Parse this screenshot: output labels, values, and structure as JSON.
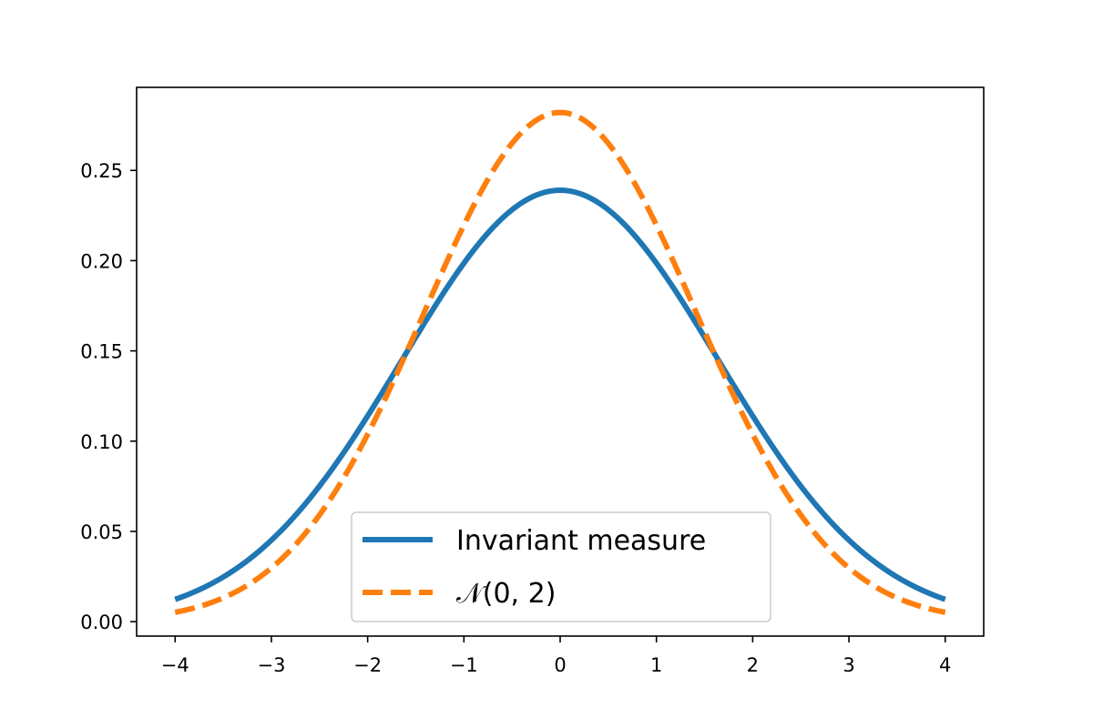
{
  "chart_data": {
    "type": "line",
    "title": "",
    "xlabel": "",
    "ylabel": "",
    "xlim": [
      -4.4,
      4.4
    ],
    "ylim": [
      -0.008,
      0.296
    ],
    "grid": false,
    "legend_position": "lower-center",
    "xticks": [
      -4,
      -3,
      -2,
      -1,
      0,
      1,
      2,
      3,
      4
    ],
    "xtick_labels": [
      "−4",
      "−3",
      "−2",
      "−1",
      "0",
      "1",
      "2",
      "3",
      "4"
    ],
    "yticks": [
      0.0,
      0.05,
      0.1,
      0.15,
      0.2,
      0.25
    ],
    "ytick_labels": [
      "0.00",
      "0.05",
      "0.10",
      "0.15",
      "0.20",
      "0.25"
    ],
    "series": [
      {
        "name": "Invariant measure",
        "color": "#1f77b4",
        "style": "solid",
        "x": [
          -4,
          -3.5,
          -3,
          -2.5,
          -2,
          -1.5,
          -1,
          -0.5,
          0,
          0.5,
          1,
          1.5,
          2,
          2.5,
          3,
          3.5,
          4
        ],
        "y": [
          0.013,
          0.026,
          0.047,
          0.078,
          0.116,
          0.158,
          0.199,
          0.229,
          0.239,
          0.229,
          0.199,
          0.158,
          0.116,
          0.078,
          0.047,
          0.026,
          0.013
        ]
      },
      {
        "name": "𝒩(0, 2)",
        "color": "#ff7f0e",
        "style": "dashed",
        "x": [
          -4,
          -3.5,
          -3,
          -2.5,
          -2,
          -1.5,
          -1,
          -0.5,
          0,
          0.5,
          1,
          1.5,
          2,
          2.5,
          3,
          3.5,
          4
        ],
        "y": [
          0.0052,
          0.0133,
          0.0297,
          0.0578,
          0.0983,
          0.1446,
          0.2197,
          0.2489,
          0.2821,
          0.2489,
          0.2197,
          0.1446,
          0.0983,
          0.0578,
          0.0297,
          0.0133,
          0.0052
        ]
      }
    ]
  },
  "legend": {
    "entries": [
      {
        "label": "Invariant measure",
        "color": "#1f77b4",
        "style": "solid"
      },
      {
        "label": "𝒩(0, 2)",
        "color": "#ff7f0e",
        "style": "dashed"
      }
    ]
  }
}
